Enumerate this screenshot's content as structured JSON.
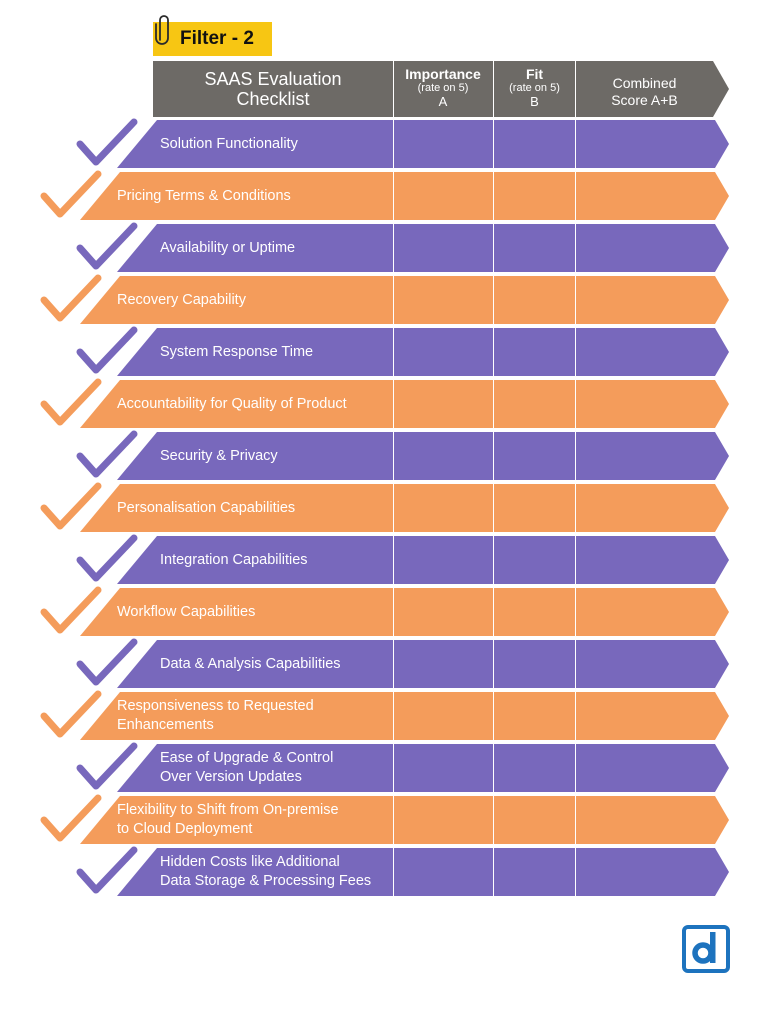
{
  "filter_tag": {
    "label": "Filter - 2",
    "color": "#f7c613",
    "icon": "paperclip-icon"
  },
  "header": {
    "title": "SAAS Evaluation\nChecklist",
    "importance": {
      "label": "Importance",
      "sub": "(rate on 5)",
      "letter": "A"
    },
    "fit": {
      "label": "Fit",
      "sub": "(rate on 5)",
      "letter": "B"
    },
    "combined": "Combined\nScore A+B",
    "color": "#6d6a66"
  },
  "colors": {
    "purple": "#7868bc",
    "orange": "#f49c5b",
    "logo_blue": "#1d73be"
  },
  "icons": {
    "check": "checkmark-icon",
    "logo": "brand-logo-d"
  },
  "rows": [
    {
      "label": "Solution Functionality",
      "color": "purple"
    },
    {
      "label": "Pricing Terms & Conditions",
      "color": "orange"
    },
    {
      "label": "Availability or Uptime",
      "color": "purple"
    },
    {
      "label": "Recovery Capability",
      "color": "orange"
    },
    {
      "label": "System Response Time",
      "color": "purple"
    },
    {
      "label": "Accountability for Quality of Product",
      "color": "orange"
    },
    {
      "label": "Security & Privacy",
      "color": "purple"
    },
    {
      "label": "Personalisation Capabilities",
      "color": "orange"
    },
    {
      "label": "Integration Capabilities",
      "color": "purple"
    },
    {
      "label": "Workflow Capabilities",
      "color": "orange"
    },
    {
      "label": "Data & Analysis Capabilities",
      "color": "purple"
    },
    {
      "label": "Responsiveness to Requested\nEnhancements",
      "color": "orange"
    },
    {
      "label": "Ease of Upgrade & Control\nOver Version Updates",
      "color": "purple"
    },
    {
      "label": "Flexibility to Shift from On-premise\nto Cloud Deployment",
      "color": "orange"
    },
    {
      "label": "Hidden Costs like Additional\nData Storage & Processing Fees",
      "color": "purple"
    }
  ]
}
